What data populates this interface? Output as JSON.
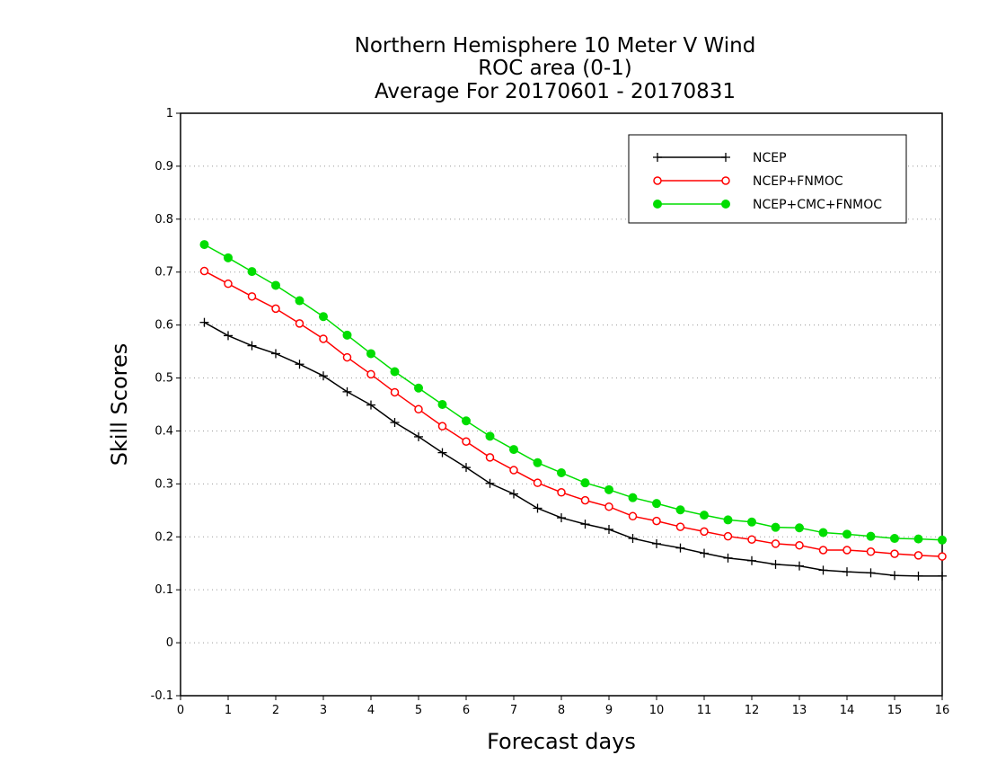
{
  "chart_data": {
    "type": "line",
    "title_lines": [
      "Northern Hemisphere 10 Meter V Wind",
      "ROC area (0-1)",
      "Average For 20170601 - 20170831"
    ],
    "xlabel": "Forecast days",
    "ylabel": "Skill Scores",
    "xlim": [
      0,
      16
    ],
    "ylim": [
      -0.1,
      1
    ],
    "xticks": [
      "0",
      "1",
      "2",
      "3",
      "4",
      "5",
      "6",
      "7",
      "8",
      "9",
      "10",
      "11",
      "12",
      "13",
      "14",
      "15",
      "16"
    ],
    "yticks": [
      "-0.1",
      "0",
      "0.1",
      "0.2",
      "0.3",
      "0.4",
      "0.5",
      "0.6",
      "0.7",
      "0.8",
      "0.9",
      "1"
    ],
    "grid": true,
    "legend_position": "top-right",
    "x": [
      0.5,
      1,
      1.5,
      2,
      2.5,
      3,
      3.5,
      4,
      4.5,
      5,
      5.5,
      6,
      6.5,
      7,
      7.5,
      8,
      8.5,
      9,
      9.5,
      10,
      10.5,
      11,
      11.5,
      12,
      12.5,
      13,
      13.5,
      14,
      14.5,
      15,
      15.5,
      16
    ],
    "series": [
      {
        "name": "NCEP",
        "color": "#000000",
        "marker": "plus",
        "values": [
          0.605,
          0.58,
          0.561,
          0.546,
          0.526,
          0.504,
          0.474,
          0.449,
          0.416,
          0.389,
          0.359,
          0.331,
          0.301,
          0.281,
          0.254,
          0.236,
          0.224,
          0.214,
          0.197,
          0.187,
          0.179,
          0.169,
          0.16,
          0.155,
          0.148,
          0.145,
          0.137,
          0.134,
          0.132,
          0.127,
          0.126,
          0.126
        ]
      },
      {
        "name": "NCEP+FNMOC",
        "color": "#ff0000",
        "marker": "open-circle",
        "values": [
          0.702,
          0.678,
          0.654,
          0.631,
          0.603,
          0.574,
          0.539,
          0.507,
          0.473,
          0.441,
          0.409,
          0.38,
          0.35,
          0.326,
          0.302,
          0.284,
          0.269,
          0.257,
          0.239,
          0.23,
          0.219,
          0.21,
          0.201,
          0.195,
          0.187,
          0.184,
          0.175,
          0.175,
          0.172,
          0.168,
          0.165,
          0.163
        ]
      },
      {
        "name": "NCEP+CMC+FNMOC",
        "color": "#00dd00",
        "marker": "filled-circle",
        "values": [
          0.752,
          0.727,
          0.701,
          0.675,
          0.646,
          0.616,
          0.581,
          0.546,
          0.512,
          0.481,
          0.45,
          0.419,
          0.39,
          0.365,
          0.34,
          0.321,
          0.302,
          0.289,
          0.274,
          0.263,
          0.251,
          0.241,
          0.232,
          0.228,
          0.218,
          0.217,
          0.208,
          0.205,
          0.201,
          0.197,
          0.196,
          0.194
        ]
      }
    ]
  }
}
